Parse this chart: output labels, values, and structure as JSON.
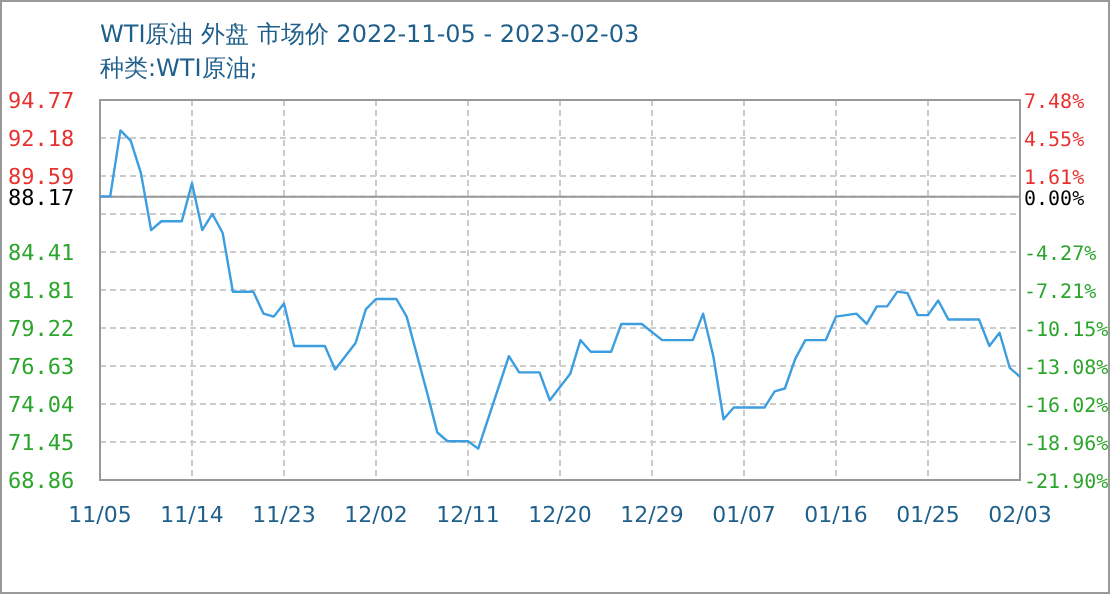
{
  "chart_data": {
    "type": "line",
    "title": "WTI原油 外盘 市场价 2022-11-05 - 2023-02-03",
    "subtitle": "种类:WTI原油;",
    "x": [
      "2022-11-05",
      "2022-11-06",
      "2022-11-07",
      "2022-11-08",
      "2022-11-09",
      "2022-11-10",
      "2022-11-11",
      "2022-11-13",
      "2022-11-14",
      "2022-11-15",
      "2022-11-16",
      "2022-11-17",
      "2022-11-18",
      "2022-11-20",
      "2022-11-21",
      "2022-11-22",
      "2022-11-23",
      "2022-11-24",
      "2022-11-27",
      "2022-11-28",
      "2022-11-30",
      "2022-12-01",
      "2022-12-02",
      "2022-12-04",
      "2022-12-05",
      "2022-12-07",
      "2022-12-08",
      "2022-12-09",
      "2022-12-11",
      "2022-12-12",
      "2022-12-15",
      "2022-12-16",
      "2022-12-18",
      "2022-12-19",
      "2022-12-20",
      "2022-12-21",
      "2022-12-22",
      "2022-12-23",
      "2022-12-25",
      "2022-12-26",
      "2022-12-28",
      "2022-12-30",
      "2023-01-02",
      "2023-01-03",
      "2023-01-04",
      "2023-01-05",
      "2023-01-06",
      "2023-01-09",
      "2023-01-10",
      "2023-01-11",
      "2023-01-12",
      "2023-01-13",
      "2023-01-15",
      "2023-01-16",
      "2023-01-18",
      "2023-01-19",
      "2023-01-20",
      "2023-01-21",
      "2023-01-22",
      "2023-01-23",
      "2023-01-24",
      "2023-01-25",
      "2023-01-26",
      "2023-01-27",
      "2023-01-30",
      "2023-01-31",
      "2023-02-01",
      "2023-02-02",
      "2023-02-03"
    ],
    "series": [
      {
        "color": "#3c9ee0",
        "values": [
          88.2,
          88.2,
          92.7,
          92.0,
          89.8,
          85.9,
          86.5,
          86.5,
          89.1,
          85.9,
          87.0,
          85.7,
          81.7,
          81.7,
          80.2,
          80.0,
          80.9,
          78.0,
          78.0,
          76.4,
          78.2,
          80.5,
          81.2,
          81.2,
          80.0,
          74.8,
          72.1,
          71.5,
          71.5,
          71.0,
          77.3,
          76.2,
          76.2,
          74.3,
          75.2,
          76.1,
          78.4,
          77.6,
          77.6,
          79.5,
          79.5,
          78.4,
          78.4,
          80.2,
          77.3,
          73.0,
          73.8,
          73.8,
          74.9,
          75.1,
          77.1,
          78.4,
          78.4,
          80.0,
          80.2,
          79.5,
          80.7,
          80.7,
          81.7,
          81.6,
          80.1,
          80.1,
          81.1,
          79.8,
          79.8,
          78.0,
          78.9,
          76.5,
          75.9
        ]
      }
    ],
    "xlim": [
      "2022-11-05",
      "2023-02-03"
    ],
    "xticks": [
      {
        "value": "2022-11-05",
        "label": "11/05"
      },
      {
        "value": "2022-11-14",
        "label": "11/14"
      },
      {
        "value": "2022-11-23",
        "label": "11/23"
      },
      {
        "value": "2022-12-02",
        "label": "12/02"
      },
      {
        "value": "2022-12-11",
        "label": "12/11"
      },
      {
        "value": "2022-12-20",
        "label": "12/20"
      },
      {
        "value": "2022-12-29",
        "label": "12/29"
      },
      {
        "value": "2023-01-07",
        "label": "01/07"
      },
      {
        "value": "2023-01-16",
        "label": "01/16"
      },
      {
        "value": "2023-01-25",
        "label": "01/25"
      },
      {
        "value": "2023-02-03",
        "label": "02/03"
      }
    ],
    "ylim": [
      68.86,
      94.77
    ],
    "yticks": [
      94.77,
      92.18,
      89.59,
      88.17,
      {
        "value": 87.0,
        "label": null
      },
      84.41,
      81.81,
      79.22,
      76.63,
      74.04,
      71.45,
      68.86
    ],
    "y2lim": [
      -21.9,
      7.48
    ],
    "y2ticks": [
      {
        "value": 7.48,
        "label": "7.48%"
      },
      {
        "value": 4.55,
        "label": "4.55%"
      },
      {
        "value": 1.61,
        "label": "1.61%"
      },
      {
        "value": 0,
        "label": "0.00%"
      },
      {
        "value": -1.33,
        "label": null
      },
      {
        "value": -4.27,
        "label": "-4.27%"
      },
      {
        "value": -7.21,
        "label": "-7.21%"
      },
      {
        "value": -10.15,
        "label": "-10.15%"
      },
      {
        "value": -13.08,
        "label": "-13.08%"
      },
      {
        "value": -16.02,
        "label": "-16.02%"
      },
      {
        "value": -18.96,
        "label": "-18.96%"
      },
      {
        "value": -21.9,
        "label": "-21.90%"
      }
    ],
    "ref_lines": [
      {
        "axis": "y",
        "value": 88.17,
        "color": "#999999"
      }
    ],
    "grid": true,
    "marker": "none",
    "line_style": "solid"
  }
}
